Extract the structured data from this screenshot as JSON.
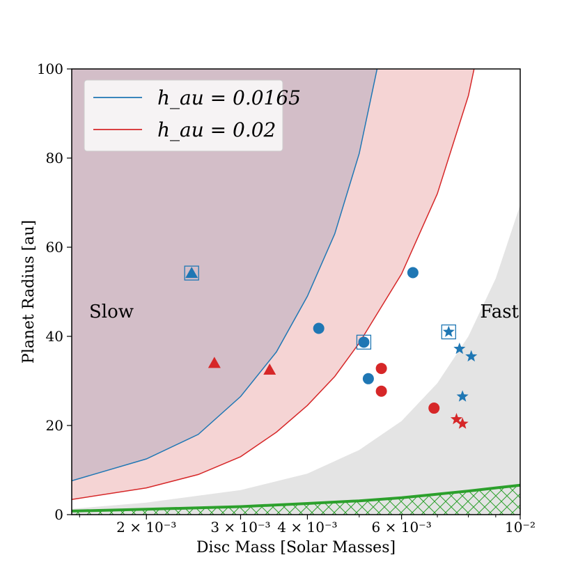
{
  "chart_data": {
    "type": "scatter",
    "xlabel": "Disc Mass [Solar Masses]",
    "ylabel": "Planet Radius [au]",
    "xscale": "log",
    "xlim": [
      0.00145,
      0.01
    ],
    "ylim": [
      0,
      100
    ],
    "x_ticks": [
      {
        "value": 0.002,
        "label": "2 × 10⁻³"
      },
      {
        "value": 0.003,
        "label": "3 × 10⁻³"
      },
      {
        "value": 0.004,
        "label": "4 × 10⁻³"
      },
      {
        "value": 0.006,
        "label": "6 × 10⁻³"
      },
      {
        "value": 0.01,
        "label": "10⁻²"
      }
    ],
    "y_ticks": [
      {
        "value": 0,
        "label": "0"
      },
      {
        "value": 20,
        "label": "20"
      },
      {
        "value": 40,
        "label": "40"
      },
      {
        "value": 60,
        "label": "60"
      },
      {
        "value": 80,
        "label": "80"
      },
      {
        "value": 100,
        "label": "100"
      }
    ],
    "legend": {
      "placement": "top-left",
      "entries": [
        {
          "label": "h_au = 0.0165",
          "color": "#1f77b4"
        },
        {
          "label": "h_au = 0.02",
          "color": "#d62728"
        }
      ]
    },
    "region_labels": {
      "slow": "Slow",
      "fast": "Fast"
    },
    "colors": {
      "blue": "#1f77b4",
      "red": "#d62728",
      "green": "#2ca02c",
      "purple_fill": "#d3bec8",
      "pink_fill": "#f5d4d4",
      "grey_fill": "#e4e4e4"
    },
    "curves": {
      "slow_boundary_blue": [
        [
          0.00145,
          7.6
        ],
        [
          0.002,
          12.5
        ],
        [
          0.0025,
          18.0
        ],
        [
          0.003,
          26.5
        ],
        [
          0.0035,
          36.5
        ],
        [
          0.004,
          49.0
        ],
        [
          0.0045,
          63.0
        ],
        [
          0.005,
          81.0
        ],
        [
          0.0054,
          100
        ]
      ],
      "slow_boundary_red": [
        [
          0.00145,
          3.4
        ],
        [
          0.002,
          6.0
        ],
        [
          0.0025,
          9.0
        ],
        [
          0.003,
          13.0
        ],
        [
          0.0035,
          18.5
        ],
        [
          0.004,
          24.5
        ],
        [
          0.0045,
          31.0
        ],
        [
          0.005,
          38.5
        ],
        [
          0.006,
          54.0
        ],
        [
          0.007,
          72.0
        ],
        [
          0.008,
          94.0
        ],
        [
          0.0082,
          100
        ]
      ],
      "fast_boundary": [
        [
          0.00145,
          1.3
        ],
        [
          0.002,
          2.7
        ],
        [
          0.003,
          5.5
        ],
        [
          0.004,
          9.2
        ],
        [
          0.005,
          14.5
        ],
        [
          0.006,
          21.0
        ],
        [
          0.007,
          29.5
        ],
        [
          0.008,
          40.0
        ],
        [
          0.009,
          53.0
        ],
        [
          0.01,
          69.5
        ]
      ],
      "green_line": [
        [
          0.00145,
          0.8
        ],
        [
          0.002,
          1.2
        ],
        [
          0.003,
          1.8
        ],
        [
          0.004,
          2.5
        ],
        [
          0.005,
          3.1
        ],
        [
          0.006,
          3.8
        ],
        [
          0.007,
          4.6
        ],
        [
          0.008,
          5.3
        ],
        [
          0.009,
          6.0
        ],
        [
          0.01,
          6.6
        ]
      ]
    },
    "series": [
      {
        "name": "blue triangle",
        "color": "blue",
        "marker": "triangle",
        "points": [
          [
            0.00243,
            54.2
          ]
        ],
        "boxed": [
          [
            0.00243,
            54.2
          ]
        ]
      },
      {
        "name": "red triangles",
        "color": "red",
        "marker": "triangle",
        "points": [
          [
            0.00268,
            34.0
          ],
          [
            0.0034,
            32.5
          ]
        ]
      },
      {
        "name": "blue circles",
        "color": "blue",
        "marker": "circle",
        "points": [
          [
            0.0042,
            41.8
          ],
          [
            0.0051,
            38.7
          ],
          [
            0.0052,
            30.5
          ],
          [
            0.0063,
            54.3
          ]
        ],
        "boxed": [
          [
            0.0051,
            38.7
          ]
        ]
      },
      {
        "name": "red circles",
        "color": "red",
        "marker": "circle",
        "points": [
          [
            0.0055,
            32.8
          ],
          [
            0.0055,
            27.7
          ],
          [
            0.0069,
            23.9
          ]
        ]
      },
      {
        "name": "blue stars",
        "color": "blue",
        "marker": "star",
        "points": [
          [
            0.00735,
            41.0
          ],
          [
            0.0077,
            37.2
          ],
          [
            0.0081,
            35.5
          ],
          [
            0.0078,
            26.5
          ]
        ],
        "boxed": [
          [
            0.00735,
            41.0
          ]
        ]
      },
      {
        "name": "red stars",
        "color": "red",
        "marker": "star",
        "points": [
          [
            0.0076,
            21.4
          ],
          [
            0.0078,
            20.4
          ]
        ]
      }
    ]
  }
}
